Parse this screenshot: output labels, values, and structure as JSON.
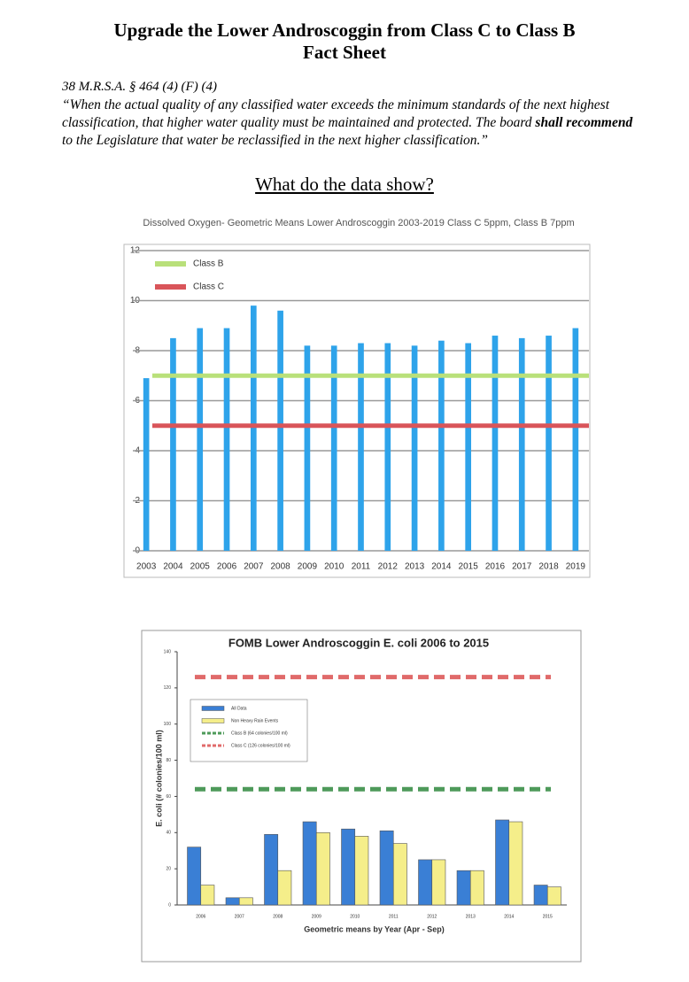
{
  "document": {
    "title": "Upgrade the Lower Androscoggin from Class C to Class B",
    "subtitle": "Fact Sheet",
    "citation": "38 M.R.S.A. § 464 (4) (F) (4)",
    "quote": [
      "“When the actual quality of any classified water exceeds the minimum standards of the next highest classification, that higher water quality must be maintained and protected. The board ",
      "shall recommend",
      " to the Legislature that water be reclassified in the next higher classification.”"
    ],
    "heading": "What do the data show?"
  },
  "chart_data": [
    {
      "type": "bar",
      "title": "Dissolved Oxygen- Geometric Means Lower Androscoggin 2003-2019 Class C 5ppm, Class B 7ppm",
      "categories": [
        "2003",
        "2004",
        "2005",
        "2006",
        "2007",
        "2008",
        "2009",
        "2010",
        "2011",
        "2012",
        "2013",
        "2014",
        "2015",
        "2016",
        "2017",
        "2018",
        "2019"
      ],
      "series": [
        {
          "color": "#2ea3ea",
          "values": [
            6.9,
            8.5,
            8.9,
            8.9,
            9.8,
            9.6,
            8.2,
            8.2,
            8.3,
            8.3,
            8.2,
            8.4,
            8.3,
            8.6,
            8.5,
            8.6,
            8.9
          ]
        }
      ],
      "reference_lines": [
        {
          "name": "Class B",
          "value": 7,
          "color": "#b9e07a",
          "dashed": false
        },
        {
          "name": "Class C",
          "value": 5,
          "color": "#d9555a",
          "dashed": false
        }
      ],
      "ylim": [
        0,
        12
      ],
      "yticks": [
        0,
        2,
        4,
        6,
        8,
        10,
        12
      ],
      "grid": true
    },
    {
      "type": "bar",
      "title": "FOMB Lower Androscoggin E. coli 2006 to 2015",
      "y_label": "E. coli (# colonies/100 ml)",
      "x_label": "Geometric means by Year (Apr - Sep)",
      "categories": [
        "2006",
        "2007",
        "2008",
        "2009",
        "2010",
        "2011",
        "2012",
        "2013",
        "2014",
        "2015"
      ],
      "series": [
        {
          "name": "All Data",
          "color": "#3a7fd5",
          "values": [
            32,
            4,
            39,
            46,
            42,
            41,
            25,
            19,
            47,
            11
          ]
        },
        {
          "name": "Non Heavy Rain Events",
          "color": "#f5ee8a",
          "values": [
            11,
            4,
            19,
            40,
            38,
            34,
            25,
            19,
            46,
            10
          ]
        }
      ],
      "reference_lines": [
        {
          "name": "Class B (64 colonies/100 ml)",
          "value": 64,
          "color": "#4e9a5a",
          "dashed": true
        },
        {
          "name": "Class C (126 colonies/100 ml)",
          "value": 126,
          "color": "#e06a6a",
          "dashed": true
        }
      ],
      "ylim": [
        0,
        140
      ],
      "yticks": [
        0,
        20,
        40,
        60,
        80,
        100,
        120,
        140
      ],
      "grid": false
    }
  ]
}
